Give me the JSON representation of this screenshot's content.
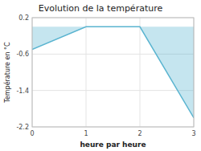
{
  "chart_data": {
    "type": "area",
    "title": "Evolution de la température",
    "xlabel": "heure par heure",
    "ylabel": "Température en °C",
    "x": [
      0,
      1,
      2,
      3
    ],
    "values": [
      -0.5,
      0.0,
      0.0,
      -2.0
    ],
    "color": "#5ab4d0",
    "xlim": [
      0,
      3
    ],
    "ylim": [
      -2.2,
      0.2
    ],
    "xticks": [
      0,
      1,
      2,
      3
    ],
    "yticks": [
      0.2,
      -0.6,
      -1.4,
      -2.2
    ],
    "grid": true
  }
}
